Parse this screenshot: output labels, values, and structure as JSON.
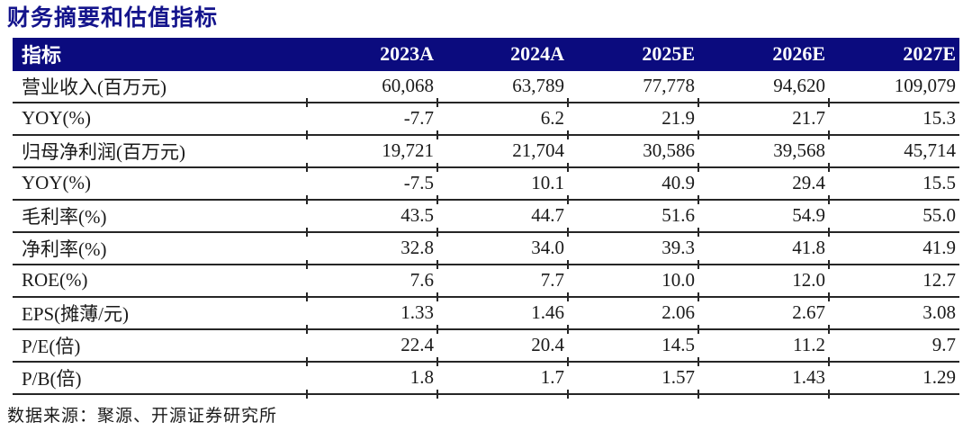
{
  "title": "财务摘要和估值指标",
  "table": {
    "header": [
      "指标",
      "2023A",
      "2024A",
      "2025E",
      "2026E",
      "2027E"
    ],
    "rows": [
      {
        "label": "营业收入(百万元)",
        "values": [
          "60,068",
          "63,789",
          "77,778",
          "94,620",
          "109,079"
        ]
      },
      {
        "label": "YOY(%)",
        "values": [
          "-7.7",
          "6.2",
          "21.9",
          "21.7",
          "15.3"
        ]
      },
      {
        "label": "归母净利润(百万元)",
        "values": [
          "19,721",
          "21,704",
          "30,586",
          "39,568",
          "45,714"
        ]
      },
      {
        "label": "YOY(%)",
        "values": [
          "-7.5",
          "10.1",
          "40.9",
          "29.4",
          "15.5"
        ]
      },
      {
        "label": "毛利率(%)",
        "values": [
          "43.5",
          "44.7",
          "51.6",
          "54.9",
          "55.0"
        ]
      },
      {
        "label": "净利率(%)",
        "values": [
          "32.8",
          "34.0",
          "39.3",
          "41.8",
          "41.9"
        ]
      },
      {
        "label": "ROE(%)",
        "values": [
          "7.6",
          "7.7",
          "10.0",
          "12.0",
          "12.7"
        ]
      },
      {
        "label": "EPS(摊薄/元)",
        "values": [
          "1.33",
          "1.46",
          "2.06",
          "2.67",
          "3.08"
        ]
      },
      {
        "label": "P/E(倍)",
        "values": [
          "22.4",
          "20.4",
          "14.5",
          "11.2",
          "9.7"
        ]
      },
      {
        "label": "P/B(倍)",
        "values": [
          "1.8",
          "1.7",
          "1.57",
          "1.43",
          "1.29"
        ]
      }
    ]
  },
  "footer": {
    "source": "数据来源：聚源、开源证券研究所"
  },
  "colors": {
    "header_bg": "#0B0B7E",
    "title_text": "#14148C",
    "rule": "#262626"
  }
}
